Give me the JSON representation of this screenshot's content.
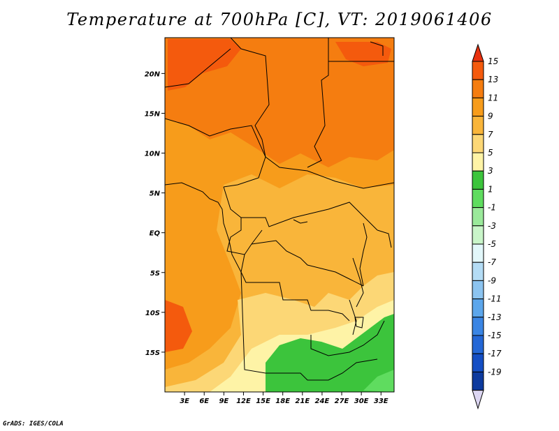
{
  "title": "Temperature at 700hPa [C], VT: 2019061406",
  "credit": "GrADS: IGES/COLA",
  "map": {
    "lon_range": [
      0,
      35
    ],
    "lat_range": [
      -20,
      24.5
    ],
    "lon_ticks": [
      {
        "value": 3,
        "label": "3E"
      },
      {
        "value": 6,
        "label": "6E"
      },
      {
        "value": 9,
        "label": "9E"
      },
      {
        "value": 12,
        "label": "12E"
      },
      {
        "value": 15,
        "label": "15E"
      },
      {
        "value": 18,
        "label": "18E"
      },
      {
        "value": 21,
        "label": "21E"
      },
      {
        "value": 24,
        "label": "24E"
      },
      {
        "value": 27,
        "label": "27E"
      },
      {
        "value": 30,
        "label": "30E"
      },
      {
        "value": 33,
        "label": "33E"
      }
    ],
    "lat_ticks": [
      {
        "value": 20,
        "label": "20N"
      },
      {
        "value": 15,
        "label": "15N"
      },
      {
        "value": 10,
        "label": "10N"
      },
      {
        "value": 5,
        "label": "5N"
      },
      {
        "value": 0,
        "label": "EQ"
      },
      {
        "value": -5,
        "label": "5S"
      },
      {
        "value": -10,
        "label": "10S"
      },
      {
        "value": -15,
        "label": "15S"
      }
    ]
  },
  "colorbar": {
    "levels": [
      {
        "label": "15",
        "color": "#e8310e"
      },
      {
        "label": "13",
        "color": "#f45a0d"
      },
      {
        "label": "11",
        "color": "#f57d10"
      },
      {
        "label": "9",
        "color": "#f79c1b"
      },
      {
        "label": "7",
        "color": "#f9b53a"
      },
      {
        "label": "5",
        "color": "#fcd776"
      },
      {
        "label": "3",
        "color": "#fef3a6"
      },
      {
        "label": "1",
        "color": "#3cc43c"
      },
      {
        "label": "-1",
        "color": "#5fdc5f"
      },
      {
        "label": "-3",
        "color": "#9ae99a"
      },
      {
        "label": "-5",
        "color": "#c9f5c9"
      },
      {
        "label": "-7",
        "color": "#e2f7fa"
      },
      {
        "label": "-9",
        "color": "#b4dcf5"
      },
      {
        "label": "-11",
        "color": "#8cc4f0"
      },
      {
        "label": "-13",
        "color": "#5ca6eb"
      },
      {
        "label": "-15",
        "color": "#3a85e4"
      },
      {
        "label": "-17",
        "color": "#2467d6"
      },
      {
        "label": "-19",
        "color": "#144ec4"
      }
    ],
    "top_cap_color": "#e8310e",
    "extra_bottom_color": "#0d3a9e",
    "bottom_cap_color": "#dcd6f2"
  }
}
